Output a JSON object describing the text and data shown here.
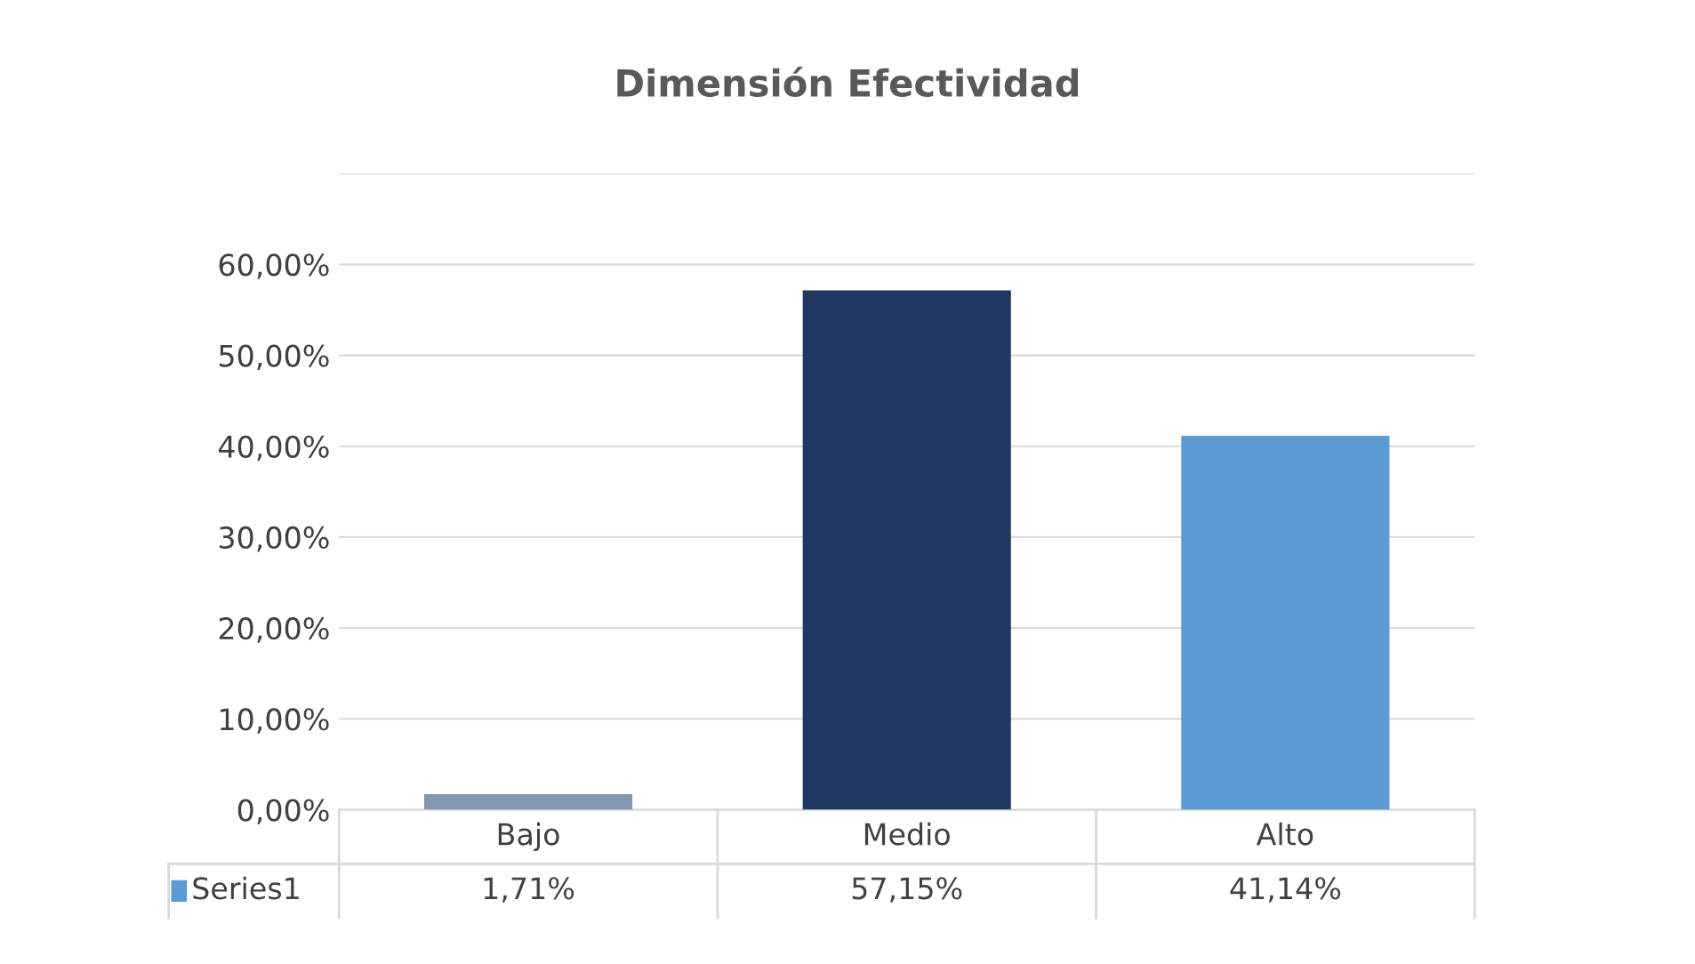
{
  "chart_data": {
    "type": "bar",
    "title": "Dimensión Efectividad",
    "categories": [
      "Bajo",
      "Medio",
      "Alto"
    ],
    "series": [
      {
        "name": "Series1",
        "color": "#5b9bd5",
        "colors": [
          "#8497b0",
          "#203864",
          "#5b9bd5"
        ],
        "values": [
          1.71,
          57.15,
          41.14
        ],
        "value_labels": [
          "1,71%",
          "57,15%",
          "41,14%"
        ]
      }
    ],
    "ylim": [
      0,
      70
    ],
    "yticks": [
      {
        "value": 0,
        "label": "0,00%"
      },
      {
        "value": 10,
        "label": "10,00%"
      },
      {
        "value": 20,
        "label": "20,00%"
      },
      {
        "value": 30,
        "label": "30,00%"
      },
      {
        "value": 40,
        "label": "40,00%"
      },
      {
        "value": 50,
        "label": "50,00%"
      },
      {
        "value": 60,
        "label": "60,00%"
      },
      {
        "value": 70,
        "label": null
      }
    ],
    "grid": "y",
    "legend": "bottom"
  }
}
